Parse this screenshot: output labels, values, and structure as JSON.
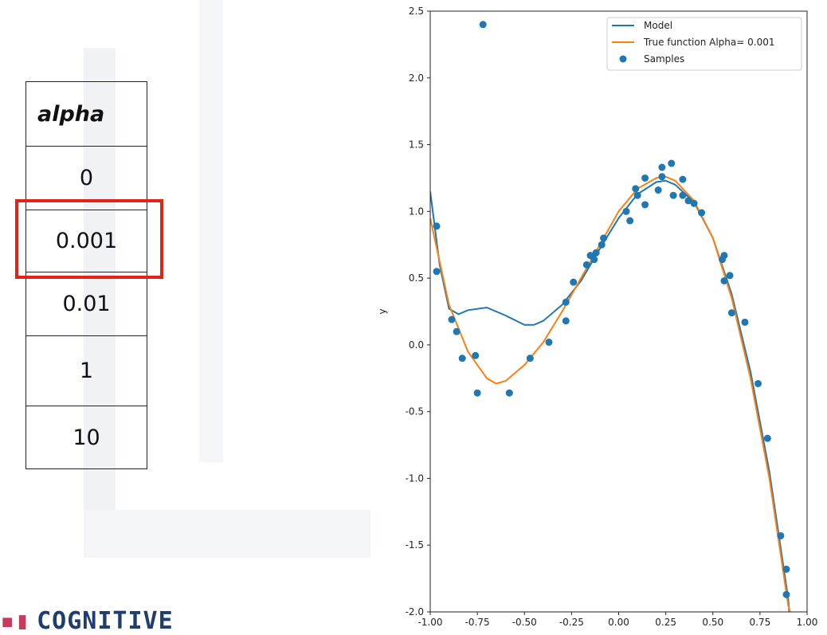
{
  "table": {
    "header": "alpha",
    "rows": [
      "0",
      "0.001",
      "0.01",
      "1",
      "10"
    ]
  },
  "logo": "COGNITIVE",
  "chart_data": {
    "type": "line",
    "ylabel": "y",
    "xlim": [
      -1,
      1
    ],
    "xticks": [
      {
        "value": -1,
        "label": "-1.00"
      },
      {
        "value": -0.75,
        "label": "-0.75"
      },
      {
        "value": -0.5,
        "label": "-0.50"
      },
      {
        "value": -0.25,
        "label": "-0.25"
      },
      {
        "value": 0,
        "label": "0.00"
      },
      {
        "value": 0.25,
        "label": "0.25"
      },
      {
        "value": 0.5,
        "label": "0.50"
      },
      {
        "value": 0.75,
        "label": "0.75"
      },
      {
        "value": 1,
        "label": "1.00"
      }
    ],
    "ylim": [
      -2,
      2.5
    ],
    "yticks": [
      {
        "value": -2,
        "label": "-2.0"
      },
      -1.5,
      {
        "value": -1,
        "label": "-1.0"
      },
      -0.5,
      {
        "value": 0,
        "label": "0.0"
      },
      0.5,
      {
        "value": 1,
        "label": "1.0"
      },
      1.5,
      {
        "value": 2,
        "label": "2.0"
      },
      2.5
    ],
    "legend": "upper right",
    "series": [
      {
        "name": "Model",
        "color": "#1f77b4",
        "type": "line",
        "x": [
          -1,
          -0.95,
          -0.9,
          -0.85,
          -0.8,
          -0.7,
          -0.6,
          -0.5,
          -0.45,
          -0.4,
          -0.3,
          -0.2,
          -0.1,
          0,
          0.1,
          0.2,
          0.25,
          0.3,
          0.4,
          0.5,
          0.6,
          0.7,
          0.8,
          0.9,
          0.905
        ],
        "values": [
          1.15,
          0.6,
          0.27,
          0.23,
          0.26,
          0.28,
          0.22,
          0.15,
          0.15,
          0.18,
          0.3,
          0.48,
          0.72,
          0.95,
          1.13,
          1.22,
          1.23,
          1.2,
          1.07,
          0.8,
          0.38,
          -0.2,
          -0.95,
          -1.9,
          -2.0
        ]
      },
      {
        "name": "True function Alpha= 0.001",
        "color": "#ff7f0e",
        "type": "line",
        "x": [
          -1,
          -0.9,
          -0.8,
          -0.7,
          -0.65,
          -0.6,
          -0.5,
          -0.4,
          -0.3,
          -0.2,
          -0.1,
          0,
          0.1,
          0.2,
          0.25,
          0.3,
          0.4,
          0.5,
          0.6,
          0.7,
          0.8,
          0.9,
          0.91
        ],
        "values": [
          0.95,
          0.3,
          -0.05,
          -0.25,
          -0.29,
          -0.27,
          -0.15,
          0.02,
          0.25,
          0.5,
          0.75,
          1.0,
          1.17,
          1.25,
          1.26,
          1.23,
          1.08,
          0.8,
          0.35,
          -0.25,
          -1.0,
          -1.95,
          -2.0
        ]
      },
      {
        "name": "Samples",
        "color": "#1f77b4",
        "type": "scatter",
        "x": [
          -0.966,
          -0.966,
          -0.72,
          -0.886,
          -0.86,
          -0.83,
          -0.76,
          -0.75,
          -0.58,
          -0.47,
          -0.37,
          -0.28,
          -0.28,
          -0.24,
          -0.17,
          -0.15,
          -0.13,
          -0.12,
          -0.09,
          -0.08,
          0.04,
          0.06,
          0.09,
          0.1,
          0.14,
          0.14,
          0.21,
          0.23,
          0.23,
          0.28,
          0.29,
          0.34,
          0.34,
          0.37,
          0.4,
          0.44,
          0.55,
          0.56,
          0.56,
          0.59,
          0.6,
          0.67,
          0.74,
          0.79,
          0.86,
          0.89,
          0.89
        ],
        "values": [
          0.89,
          0.55,
          2.4,
          0.19,
          0.1,
          -0.1,
          -0.08,
          -0.36,
          -0.36,
          -0.1,
          0.02,
          0.18,
          0.32,
          0.47,
          0.6,
          0.67,
          0.64,
          0.69,
          0.75,
          0.8,
          1.0,
          0.93,
          1.17,
          1.12,
          1.05,
          1.25,
          1.16,
          1.33,
          1.26,
          1.36,
          1.12,
          1.24,
          1.12,
          1.08,
          1.06,
          0.99,
          0.64,
          0.67,
          0.48,
          0.52,
          0.24,
          0.17,
          -0.29,
          -0.7,
          -1.43,
          -1.68,
          -1.87
        ]
      }
    ]
  }
}
